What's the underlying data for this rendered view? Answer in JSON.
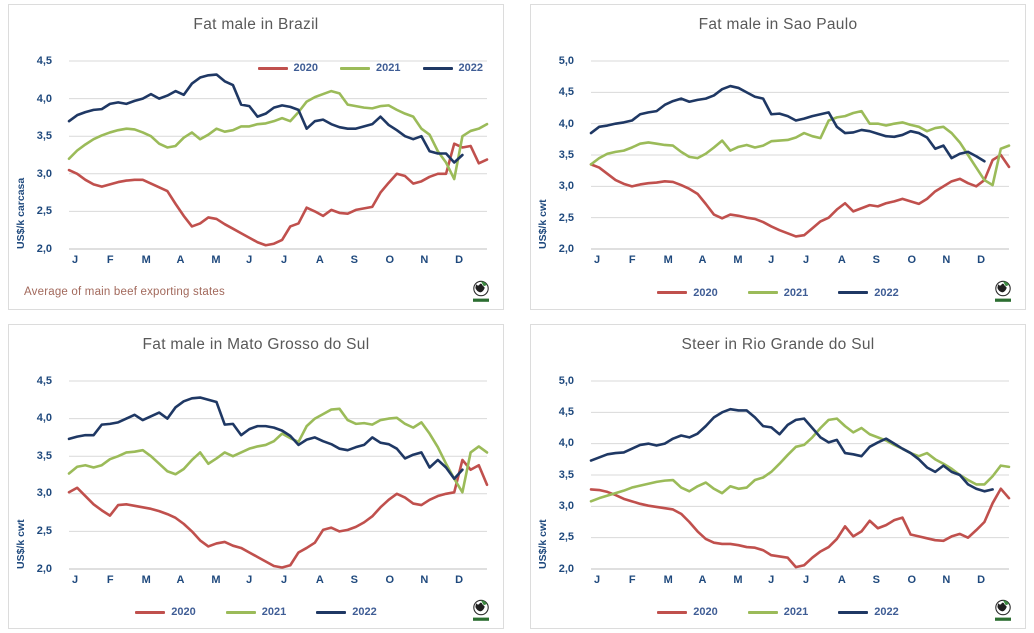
{
  "logo_icon": "globe-logo",
  "palette": {
    "red": "#C0504D",
    "green": "#9BBB59",
    "navy": "#1F3864",
    "grid": "#D9D9D9",
    "axis": "#BFBFBF",
    "axis_text": "#1F497D",
    "title_text": "#595959",
    "note_text": "#A2695C"
  },
  "chart_data": [
    {
      "type": "line",
      "title": "Fat male in Brazil",
      "ylabel": "US$/k carcasa",
      "ylim": [
        2.0,
        4.5
      ],
      "ytick_labels": [
        "4,5",
        "4,0",
        "3,5",
        "3,0",
        "2,5",
        "2,0"
      ],
      "x_months": [
        "J",
        "F",
        "M",
        "A",
        "M",
        "J",
        "J",
        "A",
        "S",
        "O",
        "N",
        "D"
      ],
      "weeks": 52,
      "grid": true,
      "legend_position": "top-right",
      "note": "Average  of main beef exporting states",
      "series": [
        {
          "name": "2020",
          "color": "#C0504D",
          "values": [
            3.05,
            3.0,
            2.92,
            2.86,
            2.83,
            2.86,
            2.89,
            2.91,
            2.92,
            2.92,
            2.87,
            2.82,
            2.77,
            2.6,
            2.44,
            2.3,
            2.34,
            2.42,
            2.4,
            2.33,
            2.27,
            2.21,
            2.15,
            2.09,
            2.05,
            2.07,
            2.12,
            2.3,
            2.34,
            2.55,
            2.5,
            2.44,
            2.52,
            2.48,
            2.47,
            2.52,
            2.54,
            2.56,
            2.75,
            2.88,
            3.0,
            2.97,
            2.87,
            2.9,
            2.96,
            3.0,
            3.0,
            3.4,
            3.35,
            3.37,
            3.14,
            3.19
          ]
        },
        {
          "name": "2021",
          "color": "#9BBB59",
          "values": [
            3.2,
            3.31,
            3.39,
            3.46,
            3.51,
            3.55,
            3.58,
            3.6,
            3.59,
            3.55,
            3.5,
            3.4,
            3.35,
            3.37,
            3.48,
            3.55,
            3.46,
            3.52,
            3.6,
            3.56,
            3.58,
            3.63,
            3.63,
            3.66,
            3.67,
            3.7,
            3.74,
            3.7,
            3.82,
            3.96,
            4.02,
            4.06,
            4.1,
            4.07,
            3.92,
            3.9,
            3.88,
            3.87,
            3.9,
            3.91,
            3.85,
            3.8,
            3.76,
            3.6,
            3.52,
            3.3,
            3.15,
            2.93,
            3.5,
            3.57,
            3.6,
            3.66
          ]
        },
        {
          "name": "2022",
          "color": "#1F3864",
          "values": [
            3.7,
            3.78,
            3.82,
            3.85,
            3.86,
            3.93,
            3.95,
            3.93,
            3.97,
            4.0,
            4.06,
            4.0,
            4.04,
            4.1,
            4.05,
            4.2,
            4.28,
            4.31,
            4.32,
            4.23,
            4.18,
            3.92,
            3.9,
            3.76,
            3.8,
            3.88,
            3.91,
            3.89,
            3.85,
            3.6,
            3.7,
            3.72,
            3.66,
            3.62,
            3.6,
            3.6,
            3.63,
            3.66,
            3.76,
            3.65,
            3.58,
            3.5,
            3.46,
            3.5,
            3.3,
            3.27,
            3.27,
            3.15,
            3.25
          ]
        }
      ]
    },
    {
      "type": "line",
      "title": "Fat male in Sao Paulo",
      "ylabel": "US$/k cwt",
      "ylim": [
        2.0,
        5.0
      ],
      "ytick_labels": [
        "5,0",
        "4,5",
        "4,0",
        "3,5",
        "3,0",
        "2,5",
        "2,0"
      ],
      "x_months": [
        "J",
        "F",
        "M",
        "A",
        "M",
        "J",
        "J",
        "A",
        "S",
        "O",
        "N",
        "D"
      ],
      "weeks": 52,
      "grid": true,
      "legend_position": "bottom",
      "note": "",
      "series": [
        {
          "name": "2020",
          "color": "#C0504D",
          "values": [
            3.35,
            3.3,
            3.2,
            3.1,
            3.04,
            3.0,
            3.03,
            3.05,
            3.06,
            3.08,
            3.07,
            3.02,
            2.96,
            2.88,
            2.72,
            2.55,
            2.49,
            2.55,
            2.53,
            2.5,
            2.48,
            2.43,
            2.36,
            2.3,
            2.25,
            2.2,
            2.22,
            2.33,
            2.44,
            2.5,
            2.63,
            2.73,
            2.6,
            2.65,
            2.7,
            2.68,
            2.73,
            2.76,
            2.8,
            2.76,
            2.72,
            2.8,
            2.92,
            3.0,
            3.08,
            3.12,
            3.05,
            3.0,
            3.1,
            3.42,
            3.5,
            3.31
          ]
        },
        {
          "name": "2021",
          "color": "#9BBB59",
          "values": [
            3.35,
            3.45,
            3.52,
            3.55,
            3.57,
            3.62,
            3.68,
            3.7,
            3.68,
            3.66,
            3.65,
            3.55,
            3.47,
            3.45,
            3.52,
            3.62,
            3.73,
            3.57,
            3.63,
            3.66,
            3.62,
            3.65,
            3.72,
            3.73,
            3.74,
            3.78,
            3.85,
            3.8,
            3.77,
            4.05,
            4.1,
            4.12,
            4.17,
            4.2,
            4.0,
            4.0,
            3.97,
            4.0,
            4.02,
            3.98,
            3.95,
            3.88,
            3.93,
            3.95,
            3.85,
            3.7,
            3.5,
            3.3,
            3.1,
            3.02,
            3.6,
            3.65
          ]
        },
        {
          "name": "2022",
          "color": "#1F3864",
          "values": [
            3.85,
            3.95,
            3.97,
            4.0,
            4.02,
            4.05,
            4.15,
            4.18,
            4.2,
            4.3,
            4.36,
            4.4,
            4.35,
            4.38,
            4.4,
            4.45,
            4.55,
            4.6,
            4.57,
            4.5,
            4.43,
            4.4,
            4.15,
            4.16,
            4.12,
            4.05,
            4.08,
            4.12,
            4.15,
            4.18,
            3.95,
            3.85,
            3.86,
            3.9,
            3.88,
            3.84,
            3.8,
            3.79,
            3.82,
            3.88,
            3.85,
            3.78,
            3.6,
            3.65,
            3.45,
            3.52,
            3.55,
            3.48,
            3.4
          ]
        }
      ]
    },
    {
      "type": "line",
      "title": "Fat male in Mato Grosso do Sul",
      "ylabel": "US$/k cwt",
      "ylim": [
        2.0,
        4.5
      ],
      "ytick_labels": [
        "4,5",
        "4,0",
        "3,5",
        "3,0",
        "2,5",
        "2,0"
      ],
      "x_months": [
        "J",
        "F",
        "M",
        "A",
        "M",
        "J",
        "J",
        "A",
        "S",
        "O",
        "N",
        "D"
      ],
      "weeks": 52,
      "grid": true,
      "legend_position": "bottom",
      "note": "",
      "series": [
        {
          "name": "2020",
          "color": "#C0504D",
          "values": [
            3.02,
            3.08,
            2.97,
            2.86,
            2.78,
            2.71,
            2.85,
            2.86,
            2.84,
            2.82,
            2.8,
            2.77,
            2.73,
            2.68,
            2.6,
            2.5,
            2.38,
            2.3,
            2.34,
            2.36,
            2.31,
            2.28,
            2.22,
            2.16,
            2.1,
            2.04,
            2.02,
            2.05,
            2.22,
            2.28,
            2.35,
            2.52,
            2.55,
            2.5,
            2.52,
            2.56,
            2.62,
            2.7,
            2.82,
            2.92,
            3.0,
            2.95,
            2.87,
            2.85,
            2.92,
            2.97,
            3.0,
            3.02,
            3.45,
            3.32,
            3.38,
            3.12
          ]
        },
        {
          "name": "2021",
          "color": "#9BBB59",
          "values": [
            3.27,
            3.36,
            3.38,
            3.35,
            3.38,
            3.46,
            3.5,
            3.55,
            3.56,
            3.58,
            3.5,
            3.4,
            3.3,
            3.26,
            3.33,
            3.45,
            3.55,
            3.4,
            3.47,
            3.55,
            3.5,
            3.55,
            3.6,
            3.63,
            3.65,
            3.7,
            3.8,
            3.74,
            3.69,
            3.9,
            4.0,
            4.06,
            4.12,
            4.13,
            3.98,
            3.93,
            3.94,
            3.92,
            3.98,
            4.0,
            4.01,
            3.93,
            3.88,
            3.95,
            3.8,
            3.62,
            3.4,
            3.2,
            3.02,
            3.55,
            3.63,
            3.55
          ]
        },
        {
          "name": "2022",
          "color": "#1F3864",
          "values": [
            3.73,
            3.76,
            3.78,
            3.78,
            3.92,
            3.93,
            3.95,
            4.0,
            4.05,
            3.98,
            4.03,
            4.08,
            4.0,
            4.15,
            4.23,
            4.27,
            4.28,
            4.25,
            4.22,
            3.92,
            3.93,
            3.78,
            3.86,
            3.9,
            3.9,
            3.88,
            3.84,
            3.77,
            3.65,
            3.72,
            3.75,
            3.7,
            3.66,
            3.6,
            3.58,
            3.62,
            3.65,
            3.75,
            3.68,
            3.66,
            3.6,
            3.47,
            3.52,
            3.55,
            3.35,
            3.45,
            3.35,
            3.2,
            3.32
          ]
        }
      ]
    },
    {
      "type": "line",
      "title": "Steer  in Rio Grande do Sul",
      "ylabel": "US$/k cwt",
      "ylim": [
        2.0,
        5.0
      ],
      "ytick_labels": [
        "5,0",
        "4,5",
        "4,0",
        "3,5",
        "3,0",
        "2,5",
        "2,0"
      ],
      "x_months": [
        "J",
        "F",
        "M",
        "A",
        "M",
        "J",
        "J",
        "A",
        "S",
        "O",
        "N",
        "D"
      ],
      "weeks": 52,
      "grid": true,
      "legend_position": "bottom",
      "note": "",
      "series": [
        {
          "name": "2020",
          "color": "#C0504D",
          "values": [
            3.27,
            3.26,
            3.23,
            3.18,
            3.12,
            3.08,
            3.04,
            3.01,
            2.99,
            2.97,
            2.95,
            2.88,
            2.75,
            2.6,
            2.48,
            2.42,
            2.4,
            2.4,
            2.38,
            2.35,
            2.34,
            2.3,
            2.22,
            2.2,
            2.18,
            2.03,
            2.06,
            2.18,
            2.28,
            2.35,
            2.48,
            2.68,
            2.52,
            2.6,
            2.77,
            2.65,
            2.7,
            2.78,
            2.82,
            2.55,
            2.52,
            2.49,
            2.46,
            2.45,
            2.52,
            2.56,
            2.5,
            2.62,
            2.75,
            3.05,
            3.28,
            3.13
          ]
        },
        {
          "name": "2021",
          "color": "#9BBB59",
          "values": [
            3.08,
            3.13,
            3.17,
            3.21,
            3.25,
            3.3,
            3.33,
            3.36,
            3.39,
            3.41,
            3.42,
            3.3,
            3.24,
            3.32,
            3.38,
            3.28,
            3.21,
            3.32,
            3.28,
            3.3,
            3.42,
            3.46,
            3.55,
            3.68,
            3.82,
            3.95,
            3.98,
            4.1,
            4.25,
            4.38,
            4.4,
            4.28,
            4.18,
            4.25,
            4.15,
            4.1,
            4.05,
            3.98,
            3.92,
            3.85,
            3.8,
            3.85,
            3.75,
            3.68,
            3.6,
            3.5,
            3.42,
            3.35,
            3.35,
            3.48,
            3.65,
            3.63
          ]
        },
        {
          "name": "2022",
          "color": "#1F3864",
          "values": [
            3.73,
            3.78,
            3.83,
            3.85,
            3.86,
            3.92,
            3.98,
            4.0,
            3.97,
            4.0,
            4.08,
            4.13,
            4.1,
            4.16,
            4.28,
            4.42,
            4.5,
            4.55,
            4.53,
            4.53,
            4.42,
            4.28,
            4.26,
            4.15,
            4.3,
            4.38,
            4.4,
            4.25,
            4.1,
            4.02,
            4.06,
            3.85,
            3.83,
            3.8,
            3.95,
            4.02,
            4.08,
            4.0,
            3.92,
            3.85,
            3.75,
            3.62,
            3.55,
            3.65,
            3.55,
            3.5,
            3.35,
            3.28,
            3.24,
            3.27
          ]
        }
      ]
    }
  ]
}
